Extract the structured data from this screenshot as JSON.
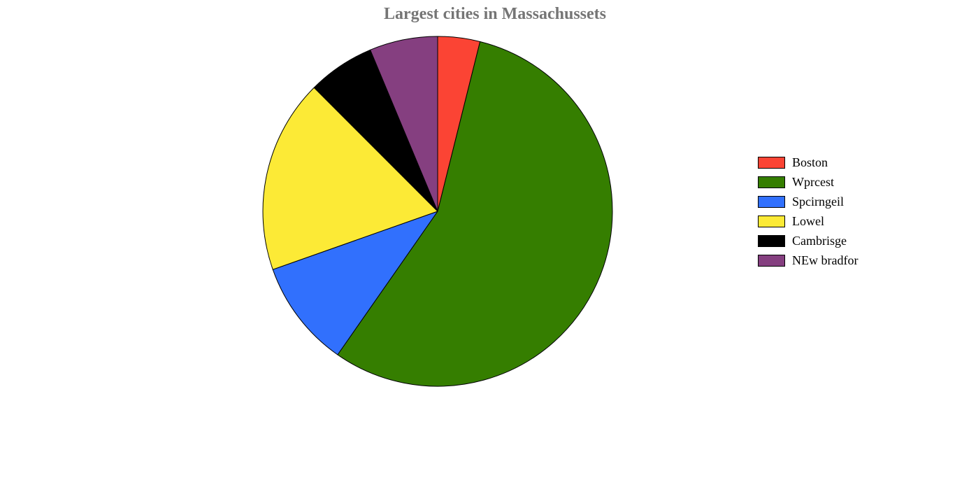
{
  "chart_data": {
    "type": "pie",
    "title": "Largest cities in Massachussets",
    "start_angle_deg": 0,
    "direction": "clockwise",
    "legend_position": "right",
    "slices": [
      {
        "label": "Boston",
        "value": 3.9,
        "color": "#fb4434"
      },
      {
        "label": "Wprcest",
        "value": 55.8,
        "color": "#357e00"
      },
      {
        "label": "Spcirngeil",
        "value": 9.9,
        "color": "#3170fd"
      },
      {
        "label": "Lowel",
        "value": 17.9,
        "color": "#fcea36"
      },
      {
        "label": "Cambrisge",
        "value": 6.2,
        "color": "#000000"
      },
      {
        "label": "NEw bradfor",
        "value": 6.3,
        "color": "#853f80"
      }
    ]
  }
}
